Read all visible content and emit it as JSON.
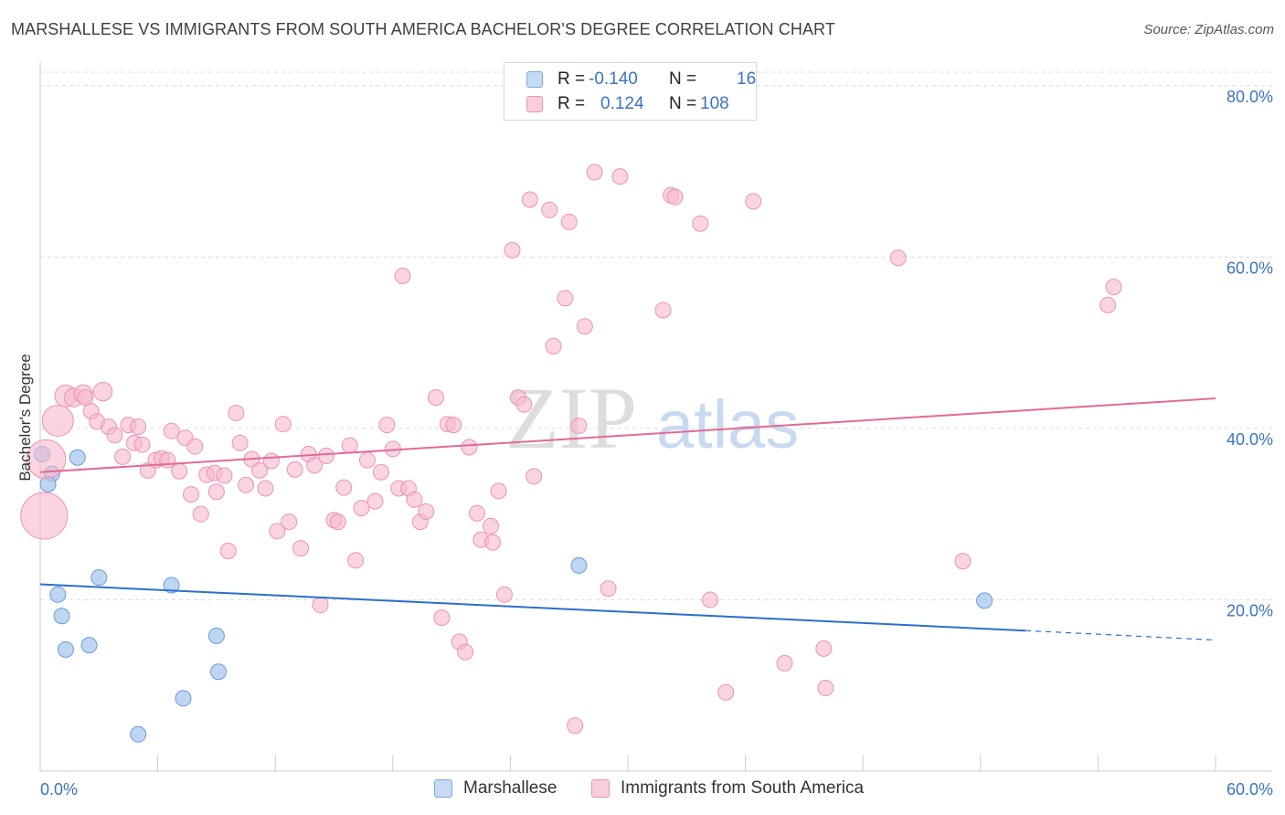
{
  "header": {
    "title": "MARSHALLESE VS IMMIGRANTS FROM SOUTH AMERICA BACHELOR'S DEGREE CORRELATION CHART",
    "source": "Source: ZipAtlas.com"
  },
  "watermark": {
    "zip": "ZIP",
    "atlas": "atlas"
  },
  "legend": {
    "r_label": "R =",
    "n_label": "N =",
    "rows": [
      {
        "r": "-0.140",
        "n": "16",
        "color": "#a9c8ee"
      },
      {
        "r": "0.124",
        "n": "108",
        "color": "#f6b9cd"
      }
    ]
  },
  "chart_data": {
    "type": "scatter",
    "title": "MARSHALLESE VS IMMIGRANTS FROM SOUTH AMERICA BACHELOR'S DEGREE CORRELATION CHART",
    "ylabel": "Bachelor's Degree",
    "xlabel": "",
    "xlim": [
      0,
      60
    ],
    "ylim": [
      0,
      82
    ],
    "x_tick_labels": [
      "0.0%",
      "60.0%"
    ],
    "y_ticks": [
      20,
      40,
      60,
      80
    ],
    "y_tick_labels": [
      "20.0%",
      "40.0%",
      "60.0%",
      "80.0%"
    ],
    "grid": "horizontal dashed",
    "legend_position": "bottom",
    "series": [
      {
        "name": "Marshallese",
        "color": "#a9c8ee",
        "stroke": "#6b9bd8",
        "trend_color": "#2a6fcc",
        "trend": {
          "x0": 0,
          "y0": 21.8,
          "x1": 50.3,
          "y1": 16.4,
          "dash_x1": 60,
          "dash_y1": 15.3
        },
        "points": [
          {
            "x": 0.1,
            "y": 37.0,
            "s": 1
          },
          {
            "x": 0.6,
            "y": 34.7,
            "s": 1
          },
          {
            "x": 0.4,
            "y": 33.5,
            "s": 1
          },
          {
            "x": 1.9,
            "y": 36.6,
            "s": 1
          },
          {
            "x": 0.9,
            "y": 20.6,
            "s": 1
          },
          {
            "x": 1.1,
            "y": 18.1,
            "s": 1
          },
          {
            "x": 1.3,
            "y": 14.2,
            "s": 1
          },
          {
            "x": 2.5,
            "y": 14.7,
            "s": 1
          },
          {
            "x": 3.0,
            "y": 22.6,
            "s": 1
          },
          {
            "x": 6.7,
            "y": 21.7,
            "s": 1
          },
          {
            "x": 9.0,
            "y": 15.8,
            "s": 1
          },
          {
            "x": 9.1,
            "y": 11.6,
            "s": 1
          },
          {
            "x": 7.3,
            "y": 8.5,
            "s": 1
          },
          {
            "x": 5.0,
            "y": 4.3,
            "s": 1
          },
          {
            "x": 27.5,
            "y": 24.0,
            "s": 1
          },
          {
            "x": 48.2,
            "y": 19.9,
            "s": 1
          }
        ]
      },
      {
        "name": "Immigrants from South America",
        "color": "#f6b9cd",
        "stroke": "#ec93b1",
        "trend_color": "#e26a96",
        "trend": {
          "x0": 0,
          "y0": 34.9,
          "x1": 60,
          "y1": 43.5
        },
        "points": [
          {
            "x": 0.2,
            "y": 29.8,
            "s": 3
          },
          {
            "x": 0.3,
            "y": 36.4,
            "s": 2.5
          },
          {
            "x": 0.9,
            "y": 40.9,
            "s": 2
          },
          {
            "x": 1.3,
            "y": 43.8,
            "s": 1.4
          },
          {
            "x": 1.7,
            "y": 43.6,
            "s": 1.2
          },
          {
            "x": 2.2,
            "y": 44.0,
            "s": 1.2
          },
          {
            "x": 2.3,
            "y": 43.6,
            "s": 1
          },
          {
            "x": 3.2,
            "y": 44.3,
            "s": 1.2
          },
          {
            "x": 2.6,
            "y": 42.0,
            "s": 1
          },
          {
            "x": 2.9,
            "y": 40.8,
            "s": 1
          },
          {
            "x": 3.5,
            "y": 40.2,
            "s": 1
          },
          {
            "x": 3.8,
            "y": 39.2,
            "s": 1
          },
          {
            "x": 4.2,
            "y": 36.7,
            "s": 1
          },
          {
            "x": 4.5,
            "y": 40.4,
            "s": 1
          },
          {
            "x": 4.8,
            "y": 38.3,
            "s": 1
          },
          {
            "x": 5.0,
            "y": 40.2,
            "s": 1
          },
          {
            "x": 5.2,
            "y": 38.1,
            "s": 1
          },
          {
            "x": 5.5,
            "y": 35.1,
            "s": 1
          },
          {
            "x": 5.9,
            "y": 36.3,
            "s": 1
          },
          {
            "x": 6.2,
            "y": 36.5,
            "s": 1
          },
          {
            "x": 6.5,
            "y": 36.3,
            "s": 1
          },
          {
            "x": 6.7,
            "y": 39.7,
            "s": 1
          },
          {
            "x": 7.1,
            "y": 35.0,
            "s": 1
          },
          {
            "x": 7.4,
            "y": 38.9,
            "s": 1
          },
          {
            "x": 7.7,
            "y": 32.3,
            "s": 1
          },
          {
            "x": 7.9,
            "y": 37.9,
            "s": 1
          },
          {
            "x": 8.2,
            "y": 30.0,
            "s": 1
          },
          {
            "x": 8.5,
            "y": 34.6,
            "s": 1
          },
          {
            "x": 8.9,
            "y": 34.8,
            "s": 1
          },
          {
            "x": 9.0,
            "y": 32.6,
            "s": 1
          },
          {
            "x": 9.4,
            "y": 34.5,
            "s": 1
          },
          {
            "x": 9.6,
            "y": 25.7,
            "s": 1
          },
          {
            "x": 10.0,
            "y": 41.8,
            "s": 1
          },
          {
            "x": 10.2,
            "y": 38.3,
            "s": 1
          },
          {
            "x": 10.5,
            "y": 33.4,
            "s": 1
          },
          {
            "x": 10.8,
            "y": 36.4,
            "s": 1
          },
          {
            "x": 11.2,
            "y": 35.1,
            "s": 1
          },
          {
            "x": 11.5,
            "y": 33.0,
            "s": 1
          },
          {
            "x": 11.8,
            "y": 36.2,
            "s": 1
          },
          {
            "x": 12.1,
            "y": 28.0,
            "s": 1
          },
          {
            "x": 12.4,
            "y": 40.5,
            "s": 1
          },
          {
            "x": 12.7,
            "y": 29.1,
            "s": 1
          },
          {
            "x": 13.0,
            "y": 35.2,
            "s": 1
          },
          {
            "x": 13.3,
            "y": 26.0,
            "s": 1
          },
          {
            "x": 13.7,
            "y": 37.0,
            "s": 1
          },
          {
            "x": 14.0,
            "y": 35.7,
            "s": 1
          },
          {
            "x": 14.3,
            "y": 19.4,
            "s": 1
          },
          {
            "x": 14.6,
            "y": 36.8,
            "s": 1
          },
          {
            "x": 15.0,
            "y": 29.3,
            "s": 1
          },
          {
            "x": 15.2,
            "y": 29.1,
            "s": 1
          },
          {
            "x": 15.5,
            "y": 33.1,
            "s": 1
          },
          {
            "x": 15.8,
            "y": 38.0,
            "s": 1
          },
          {
            "x": 16.1,
            "y": 24.6,
            "s": 1
          },
          {
            "x": 16.4,
            "y": 30.7,
            "s": 1
          },
          {
            "x": 16.7,
            "y": 36.3,
            "s": 1
          },
          {
            "x": 17.1,
            "y": 31.5,
            "s": 1
          },
          {
            "x": 17.4,
            "y": 34.9,
            "s": 1
          },
          {
            "x": 17.7,
            "y": 40.4,
            "s": 1
          },
          {
            "x": 18.0,
            "y": 37.6,
            "s": 1
          },
          {
            "x": 18.3,
            "y": 33.0,
            "s": 1
          },
          {
            "x": 18.5,
            "y": 57.8,
            "s": 1
          },
          {
            "x": 18.8,
            "y": 33.0,
            "s": 1
          },
          {
            "x": 19.1,
            "y": 31.7,
            "s": 1
          },
          {
            "x": 19.4,
            "y": 29.1,
            "s": 1
          },
          {
            "x": 19.7,
            "y": 30.3,
            "s": 1
          },
          {
            "x": 20.2,
            "y": 43.6,
            "s": 1
          },
          {
            "x": 20.5,
            "y": 17.9,
            "s": 1
          },
          {
            "x": 20.8,
            "y": 40.5,
            "s": 1
          },
          {
            "x": 21.1,
            "y": 40.4,
            "s": 1
          },
          {
            "x": 21.4,
            "y": 15.1,
            "s": 1
          },
          {
            "x": 21.7,
            "y": 13.9,
            "s": 1
          },
          {
            "x": 21.9,
            "y": 37.8,
            "s": 1
          },
          {
            "x": 22.3,
            "y": 30.1,
            "s": 1
          },
          {
            "x": 22.5,
            "y": 27.0,
            "s": 1
          },
          {
            "x": 23.0,
            "y": 28.6,
            "s": 1
          },
          {
            "x": 23.1,
            "y": 26.7,
            "s": 1
          },
          {
            "x": 23.4,
            "y": 32.7,
            "s": 1
          },
          {
            "x": 23.7,
            "y": 20.6,
            "s": 1
          },
          {
            "x": 24.1,
            "y": 60.8,
            "s": 1
          },
          {
            "x": 24.4,
            "y": 43.6,
            "s": 1
          },
          {
            "x": 24.7,
            "y": 42.8,
            "s": 1
          },
          {
            "x": 25.0,
            "y": 66.7,
            "s": 1
          },
          {
            "x": 25.2,
            "y": 34.4,
            "s": 1
          },
          {
            "x": 26.0,
            "y": 65.5,
            "s": 1
          },
          {
            "x": 26.2,
            "y": 49.6,
            "s": 1
          },
          {
            "x": 26.8,
            "y": 55.2,
            "s": 1
          },
          {
            "x": 27.0,
            "y": 64.1,
            "s": 1
          },
          {
            "x": 27.3,
            "y": 5.3,
            "s": 1
          },
          {
            "x": 27.5,
            "y": 40.3,
            "s": 1
          },
          {
            "x": 27.8,
            "y": 51.9,
            "s": 1
          },
          {
            "x": 28.3,
            "y": 69.9,
            "s": 1
          },
          {
            "x": 29.0,
            "y": 21.3,
            "s": 1
          },
          {
            "x": 29.6,
            "y": 69.4,
            "s": 1
          },
          {
            "x": 31.8,
            "y": 53.8,
            "s": 1
          },
          {
            "x": 32.2,
            "y": 67.2,
            "s": 1
          },
          {
            "x": 32.4,
            "y": 67.0,
            "s": 1
          },
          {
            "x": 33.7,
            "y": 63.9,
            "s": 1
          },
          {
            "x": 34.2,
            "y": 20.0,
            "s": 1
          },
          {
            "x": 35.0,
            "y": 9.2,
            "s": 1
          },
          {
            "x": 36.4,
            "y": 66.5,
            "s": 1
          },
          {
            "x": 38.0,
            "y": 12.6,
            "s": 1
          },
          {
            "x": 40.0,
            "y": 14.3,
            "s": 1
          },
          {
            "x": 40.1,
            "y": 9.7,
            "s": 1
          },
          {
            "x": 43.8,
            "y": 59.9,
            "s": 1
          },
          {
            "x": 47.1,
            "y": 24.5,
            "s": 1
          },
          {
            "x": 54.8,
            "y": 56.5,
            "s": 1
          },
          {
            "x": 54.5,
            "y": 54.4,
            "s": 1
          }
        ]
      }
    ]
  }
}
